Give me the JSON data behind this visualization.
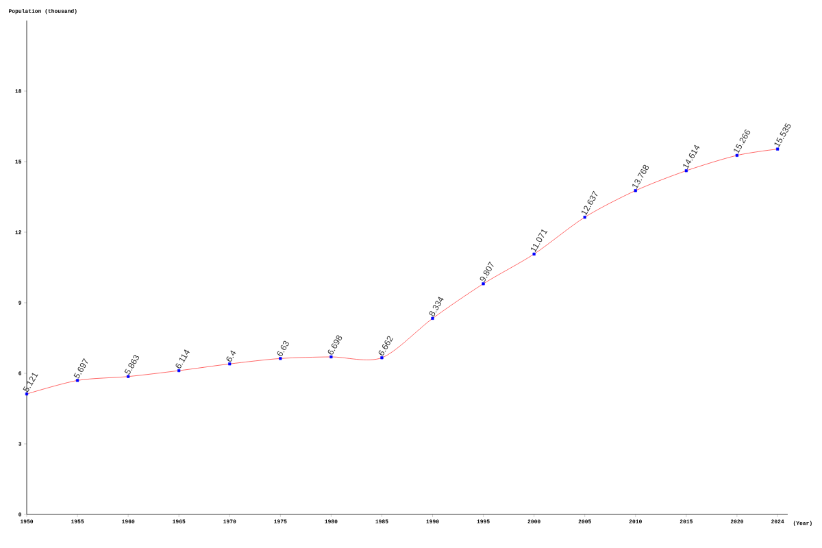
{
  "chart_data": {
    "type": "line",
    "xlabel": "(Year)",
    "ylabel": "Population (thousand)",
    "x": [
      1950,
      1955,
      1960,
      1965,
      1970,
      1975,
      1980,
      1985,
      1990,
      1995,
      2000,
      2005,
      2010,
      2015,
      2020,
      2024
    ],
    "series": [
      {
        "color": "#ff0000",
        "values": [
          5.121,
          5.697,
          5.863,
          6.114,
          6.4,
          6.63,
          6.698,
          6.662,
          8.334,
          9.807,
          11.071,
          12.637,
          13.768,
          14.614,
          15.266,
          15.535
        ]
      }
    ],
    "xlim": [
      1950,
      2025
    ],
    "ylim": [
      0,
      21
    ],
    "xticks": [
      1950,
      1955,
      1960,
      1965,
      1970,
      1975,
      1980,
      1985,
      1990,
      1995,
      2000,
      2005,
      2010,
      2015,
      2020,
      2024
    ],
    "yticks": [
      0,
      3,
      6,
      9,
      12,
      15,
      18
    ],
    "marker": "square",
    "data_labels": true
  }
}
